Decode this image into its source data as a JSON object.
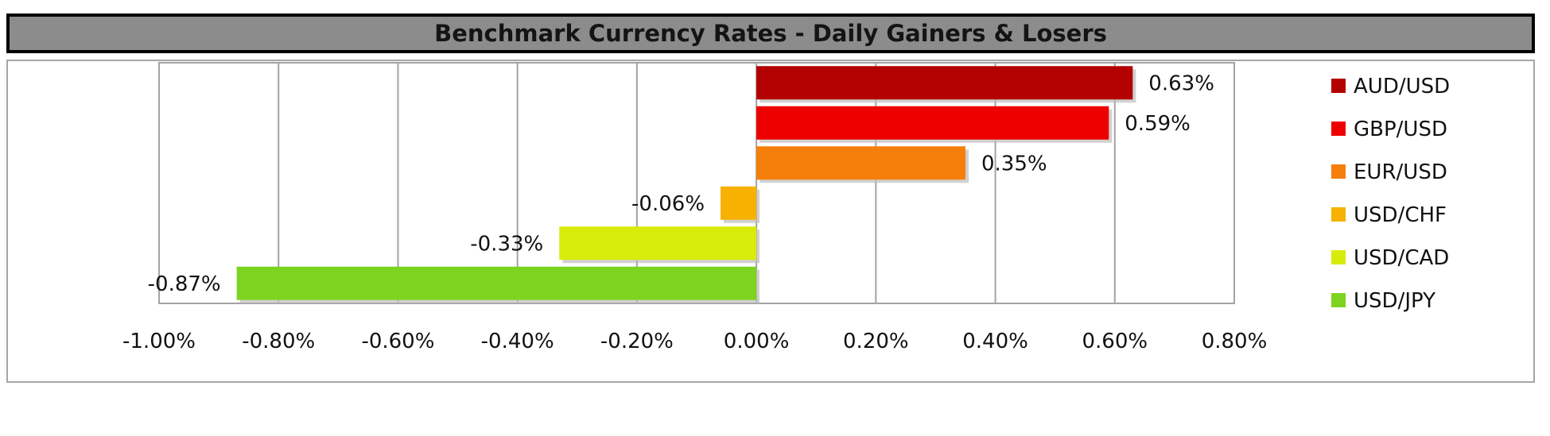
{
  "title": "Benchmark Currency Rates - Daily Gainers & Losers",
  "chart_data": {
    "type": "bar",
    "orientation": "horizontal",
    "title": "Benchmark Currency Rates - Daily Gainers & Losers",
    "categories": [
      "AUD/USD",
      "GBP/USD",
      "EUR/USD",
      "USD/CHF",
      "USD/CAD",
      "USD/JPY"
    ],
    "values": [
      0.63,
      0.59,
      0.35,
      -0.06,
      -0.33,
      -0.87
    ],
    "data_labels": [
      "0.63%",
      "0.59%",
      "0.35%",
      "-0.06%",
      "-0.33%",
      "-0.87%"
    ],
    "colors": [
      "#b30000",
      "#ee0000",
      "#f57f0a",
      "#f7b100",
      "#d8ec0c",
      "#7ed321"
    ],
    "xlim": [
      -1.0,
      0.8
    ],
    "x_ticks": [
      -1.0,
      -0.8,
      -0.6,
      -0.4,
      -0.2,
      0.0,
      0.2,
      0.4,
      0.6,
      0.8
    ],
    "x_tick_labels": [
      "-1.00%",
      "-0.80%",
      "-0.60%",
      "-0.40%",
      "-0.20%",
      "0.00%",
      "0.20%",
      "0.40%",
      "0.60%",
      "0.80%"
    ],
    "xlabel": "",
    "ylabel": "",
    "grid": true,
    "legend": {
      "position": "right",
      "entries": [
        "AUD/USD",
        "GBP/USD",
        "EUR/USD",
        "USD/CHF",
        "USD/CAD",
        "USD/JPY"
      ]
    }
  }
}
